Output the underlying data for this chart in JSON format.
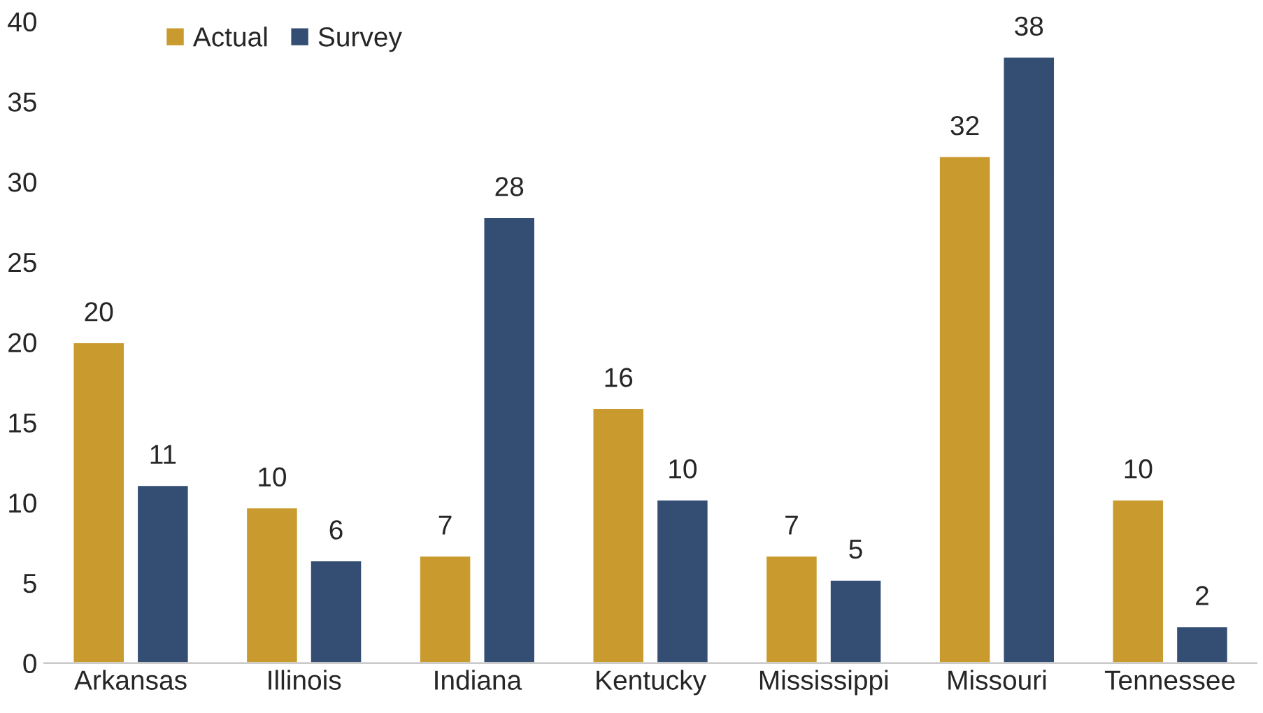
{
  "chart_data": {
    "type": "bar",
    "categories": [
      "Arkansas",
      "Illinois",
      "Indiana",
      "Kentucky",
      "Mississippi",
      "Missouri",
      "Tennessee"
    ],
    "series": [
      {
        "name": "Actual",
        "color": "#c99a2e",
        "values": [
          20.0,
          9.7,
          6.7,
          15.9,
          6.7,
          31.6,
          10.2
        ],
        "value_labels": [
          "20",
          "10",
          "7",
          "16",
          "7",
          "32",
          "10"
        ]
      },
      {
        "name": "Survey",
        "color": "#344e73",
        "values": [
          11.1,
          6.4,
          27.8,
          10.2,
          5.2,
          37.8,
          2.3
        ],
        "value_labels": [
          "11",
          "6",
          "28",
          "10",
          "5",
          "38",
          "2"
        ]
      }
    ],
    "ylim": [
      0,
      40
    ],
    "yticks": [
      0,
      5,
      10,
      15,
      20,
      25,
      30,
      35,
      40
    ],
    "grid": false,
    "legend": "top left"
  }
}
